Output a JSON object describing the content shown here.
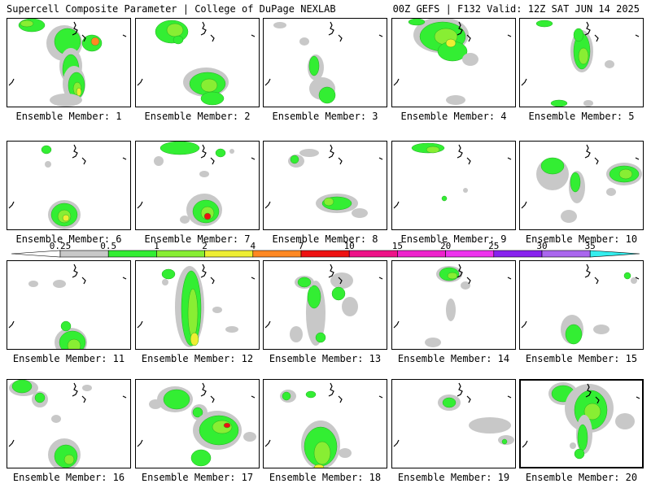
{
  "header": {
    "title": "Supercell Composite Parameter | College of DuPage NEXLAB",
    "run_info": "00Z GEFS | F132 Valid: 12Z SAT JUN 14 2025"
  },
  "legend": {
    "ticks": [
      "0.25",
      "0.5",
      "1",
      "2",
      "4",
      "7",
      "10",
      "15",
      "20",
      "25",
      "30",
      "35"
    ],
    "colors": [
      "#c8c8c8",
      "#33ee33",
      "#88ee33",
      "#eeee33",
      "#ff8822",
      "#ee1111",
      "#ee1188",
      "#ee22cc",
      "#ee33ee",
      "#8822ee",
      "#aa66ee",
      "#33eeee"
    ],
    "under_color": "#ffffff",
    "over_color": "#33eeee"
  },
  "colors": {
    "light_gray": "#c8c8c8",
    "green": "#33ee33",
    "light_green": "#88ee33",
    "yellow": "#eeee33",
    "orange": "#ff8822",
    "red": "#ee1111"
  },
  "panels": [
    {
      "label": "Ensemble Member: 1",
      "selected": false
    },
    {
      "label": "Ensemble Member: 2",
      "selected": false
    },
    {
      "label": "Ensemble Member: 3",
      "selected": false
    },
    {
      "label": "Ensemble Member: 4",
      "selected": false
    },
    {
      "label": "Ensemble Member: 5",
      "selected": false
    },
    {
      "label": "Ensemble Member: 6",
      "selected": false
    },
    {
      "label": "Ensemble Member: 7",
      "selected": false
    },
    {
      "label": "Ensemble Member: 8",
      "selected": false
    },
    {
      "label": "Ensemble Member: 9",
      "selected": false
    },
    {
      "label": "Ensemble Member: 10",
      "selected": false
    },
    {
      "label": "Ensemble Member: 11",
      "selected": false
    },
    {
      "label": "Ensemble Member: 12",
      "selected": false
    },
    {
      "label": "Ensemble Member: 13",
      "selected": false
    },
    {
      "label": "Ensemble Member: 14",
      "selected": false
    },
    {
      "label": "Ensemble Member: 15",
      "selected": false
    },
    {
      "label": "Ensemble Member: 16",
      "selected": false
    },
    {
      "label": "Ensemble Member: 17",
      "selected": false
    },
    {
      "label": "Ensemble Member: 18",
      "selected": false
    },
    {
      "label": "Ensemble Member: 19",
      "selected": false
    },
    {
      "label": "Ensemble Member: 20",
      "selected": true
    }
  ]
}
